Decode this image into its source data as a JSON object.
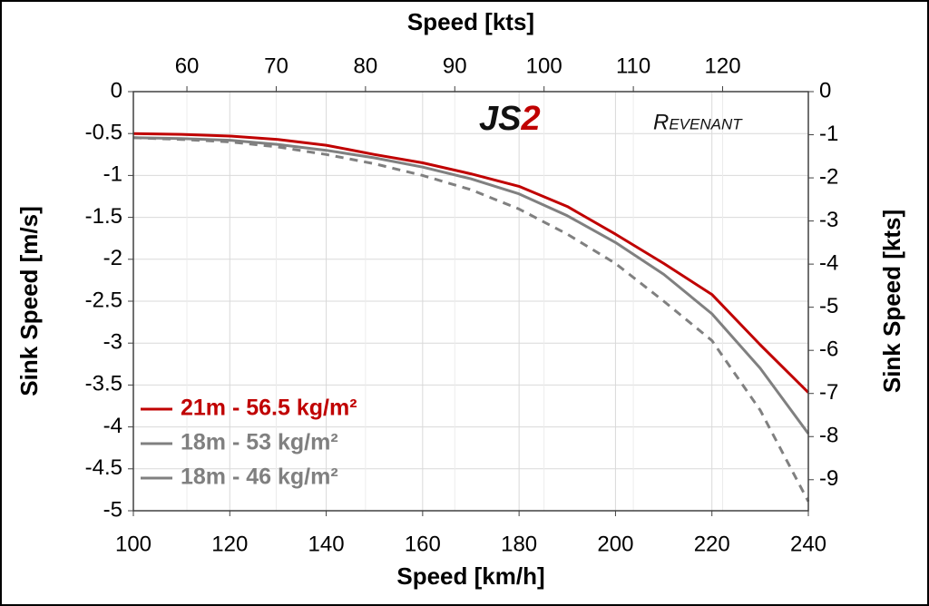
{
  "chart_data": {
    "type": "line",
    "title_top": "Speed [kts]",
    "xlabel": "Speed [km/h]",
    "ylabel": "Sink Speed [m/s]",
    "y2label": "Sink Speed [kts]",
    "logo": [
      "JS",
      "2",
      "Revenant"
    ],
    "x": [
      100,
      110,
      120,
      130,
      140,
      150,
      160,
      170,
      180,
      190,
      200,
      210,
      220,
      230,
      240
    ],
    "xlim": [
      100,
      240
    ],
    "xticks": [
      100,
      120,
      140,
      160,
      180,
      200,
      220,
      240
    ],
    "x2lim": [
      54,
      129.6
    ],
    "x2ticks": [
      60,
      70,
      80,
      90,
      100,
      110,
      120
    ],
    "ylim": [
      0,
      -5
    ],
    "yticks": [
      0,
      -0.5,
      -1,
      -1.5,
      -2,
      -2.5,
      -3,
      -3.5,
      -4,
      -4.5,
      -5
    ],
    "y2lim": [
      0,
      -9.72
    ],
    "y2ticks": [
      0,
      -1,
      -2,
      -3,
      -4,
      -5,
      -6,
      -7,
      -8,
      -9
    ],
    "grid": true,
    "legend": "lower left",
    "series": [
      {
        "name": "21m - 56.5 kg/m²",
        "color": "#c00000",
        "dash": false,
        "values": [
          -0.5,
          -0.51,
          -0.53,
          -0.57,
          -0.64,
          -0.75,
          -0.85,
          -0.98,
          -1.13,
          -1.37,
          -1.7,
          -2.05,
          -2.42,
          -3.02,
          -3.59
        ]
      },
      {
        "name": "18m - 53 kg/m²",
        "color": "#808080",
        "dash": false,
        "values": [
          -0.55,
          -0.56,
          -0.58,
          -0.63,
          -0.7,
          -0.79,
          -0.9,
          -1.04,
          -1.22,
          -1.48,
          -1.8,
          -2.18,
          -2.65,
          -3.3,
          -4.08
        ]
      },
      {
        "name": "18m - 46 kg/m²",
        "color": "#808080",
        "dash": true,
        "values": [
          -0.55,
          -0.57,
          -0.6,
          -0.66,
          -0.75,
          -0.86,
          -1.0,
          -1.17,
          -1.4,
          -1.7,
          -2.05,
          -2.5,
          -2.97,
          -3.8,
          -4.89
        ]
      }
    ]
  }
}
